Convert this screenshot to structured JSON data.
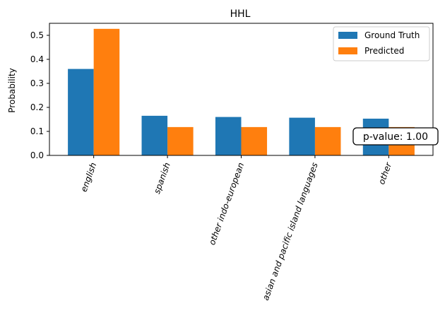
{
  "chart_data": {
    "type": "bar",
    "title": "HHL",
    "xlabel": "",
    "ylabel": "Probability",
    "ylim": [
      0,
      0.55
    ],
    "yticks": [
      0.0,
      0.1,
      0.2,
      0.3,
      0.4,
      0.5
    ],
    "ytick_labels": [
      "0.0",
      "0.1",
      "0.2",
      "0.3",
      "0.4",
      "0.5"
    ],
    "categories": [
      "english",
      "spanish",
      "other indo-european",
      "asian and pacific island languages",
      "other"
    ],
    "series": [
      {
        "name": "Ground Truth",
        "color": "#1f77b4",
        "values": [
          0.36,
          0.165,
          0.16,
          0.157,
          0.153
        ]
      },
      {
        "name": "Predicted",
        "color": "#ff7f0e",
        "values": [
          0.527,
          0.118,
          0.118,
          0.118,
          0.118
        ]
      }
    ],
    "legend_position": "top-right",
    "grid": false,
    "annotation": "p-value: 1.00"
  }
}
